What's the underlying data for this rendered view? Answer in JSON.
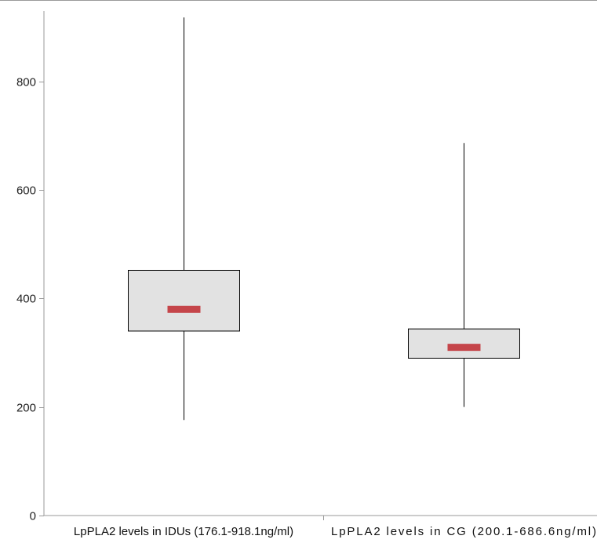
{
  "chart_data": {
    "type": "boxplot",
    "title": "",
    "xlabel": "",
    "ylabel": "",
    "ylim": [
      0,
      930
    ],
    "yticks": [
      0,
      200,
      400,
      600,
      800
    ],
    "grid": false,
    "legend": "none",
    "categories": [
      "LpPLA2 levels in IDUs (176.1-918.1ng/ml)",
      "LpPLA2 levels in CG (200.1-686.6ng/ml)"
    ],
    "boxes": [
      {
        "min": 176.1,
        "q1": 340,
        "median": 380,
        "q3": 452,
        "max": 918.1
      },
      {
        "min": 200.1,
        "q1": 290,
        "median": 310,
        "q3": 344,
        "max": 686.6
      }
    ],
    "colors": {
      "box_fill": "#e2e2e2",
      "median": "#c5454a",
      "axis": "#999999",
      "line": "#000000"
    }
  }
}
